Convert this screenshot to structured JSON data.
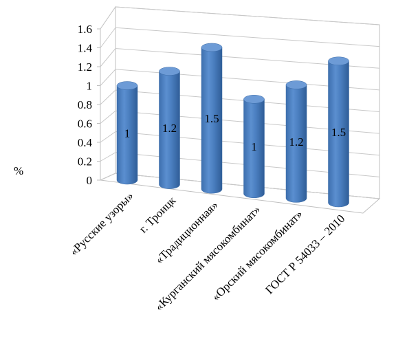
{
  "chart_data": {
    "type": "bar",
    "style": "3d-cylinder",
    "ylabel": "%",
    "ylim": [
      0,
      1.6
    ],
    "yticks": [
      "0",
      "0.2",
      "0.4",
      "0.6",
      "0.8",
      "1",
      "1.2",
      "1.4",
      "1.6"
    ],
    "grid": true,
    "bar_color": "#4a7ebf",
    "categories": [
      "«Русские узоры»",
      "г. Троицк",
      "«Традиционная»",
      "«Курганский мясокомбинат»",
      "«Орский мясокомбинат»",
      "ГОСТ Р 54033 – 2010"
    ],
    "values": [
      1,
      1.2,
      1.5,
      1,
      1.2,
      1.5
    ],
    "data_labels": [
      "1",
      "1.2",
      "1.5",
      "1",
      "1.2",
      "1.5"
    ]
  }
}
